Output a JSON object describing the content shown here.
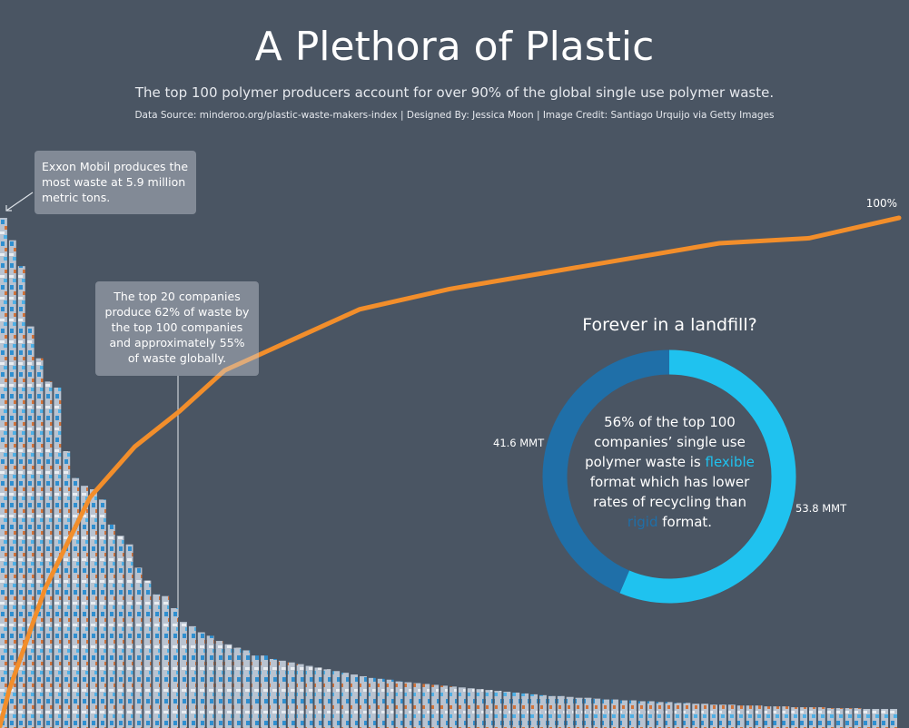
{
  "chart_data": [
    {
      "type": "bar",
      "title": "A Plethora of Plastic",
      "subtitle": "The top 100 polymer producers account for over 90% of the global single use polymer waste.",
      "source": "Data Source: minderoo.org/plastic-waste-makers-index  |  Designed By: Jessica Moon  |  Image Credit: Santiago Urquijo via Getty Images",
      "annotations": [
        "Exxon Mobil produces the most waste at 5.9 million metric tons.",
        "The top 20 companies produce 62% of waste by the top 100 companies and approximately 55% of waste globally."
      ],
      "color": "#b9c3d0",
      "ylim": [
        0,
        5.9
      ],
      "values": [
        5.9,
        5.64,
        5.34,
        4.64,
        4.27,
        4.0,
        3.93,
        3.19,
        2.88,
        2.79,
        2.75,
        2.63,
        2.34,
        2.21,
        2.11,
        1.84,
        1.69,
        1.53,
        1.51,
        1.37,
        1.21,
        1.16,
        1.09,
        1.05,
        0.99,
        0.95,
        0.91,
        0.88,
        0.82,
        0.82,
        0.78,
        0.76,
        0.74,
        0.72,
        0.7,
        0.68,
        0.66,
        0.64,
        0.62,
        0.6,
        0.58,
        0.56,
        0.55,
        0.54,
        0.52,
        0.51,
        0.5,
        0.49,
        0.48,
        0.47,
        0.46,
        0.45,
        0.44,
        0.43,
        0.42,
        0.41,
        0.4,
        0.39,
        0.38,
        0.37,
        0.36,
        0.35,
        0.35,
        0.34,
        0.33,
        0.33,
        0.32,
        0.31,
        0.31,
        0.3,
        0.3,
        0.29,
        0.29,
        0.28,
        0.28,
        0.27,
        0.27,
        0.26,
        0.26,
        0.25,
        0.25,
        0.25,
        0.24,
        0.24,
        0.24,
        0.23,
        0.23,
        0.23,
        0.22,
        0.22,
        0.22,
        0.22,
        0.21,
        0.21,
        0.21,
        0.21,
        0.2,
        0.2,
        0.2,
        0.2
      ]
    },
    {
      "type": "line",
      "color": "#f28e2b",
      "xlim": [
        0,
        100
      ],
      "ylim": [
        0,
        100
      ],
      "x": [
        0,
        1,
        5,
        10,
        15,
        20,
        25,
        30,
        35,
        40,
        50,
        60,
        70,
        80,
        90,
        100
      ],
      "values": [
        0,
        7,
        27,
        45,
        55,
        62,
        70,
        74,
        78,
        82,
        86,
        89,
        92,
        95,
        96,
        100
      ],
      "value_labels": [
        null,
        null,
        null,
        null,
        null,
        null,
        null,
        null,
        null,
        null,
        null,
        null,
        null,
        null,
        null,
        "100%"
      ]
    },
    {
      "type": "donut",
      "title": "Forever in a landfill?",
      "values": [
        53.8,
        41.6
      ],
      "value_labels": [
        "53.8 MMT",
        "41.6 MMT"
      ],
      "colors": [
        "#1fc2ef",
        "#1f6fa8"
      ],
      "center_text": [
        "56% of the top 100 companies’ single use polymer waste is ",
        "flexible",
        " format which has lower rates of recycling than ",
        "rigid",
        " format."
      ]
    }
  ]
}
